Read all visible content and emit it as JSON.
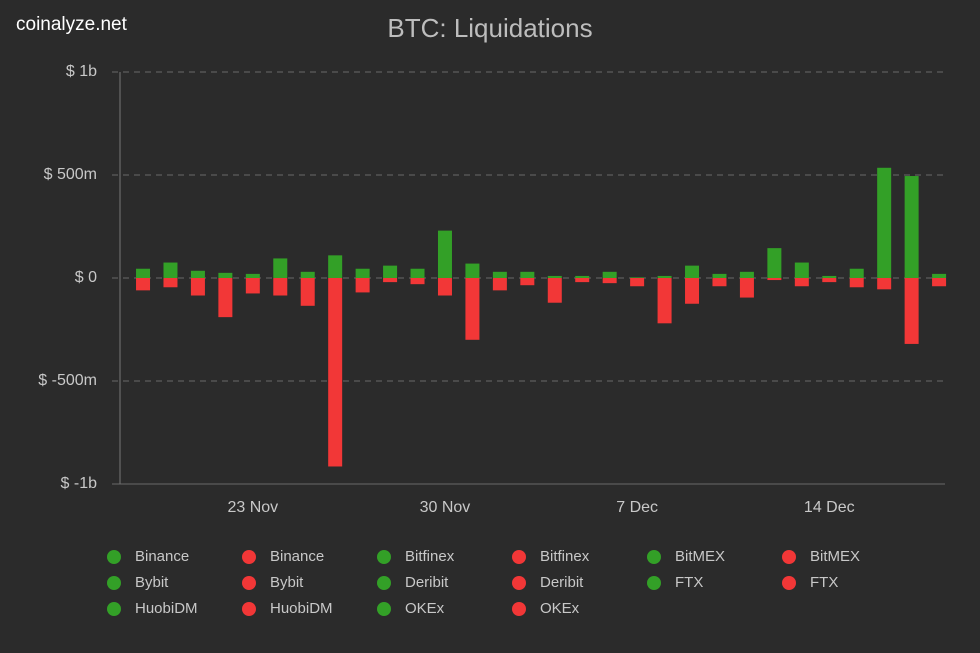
{
  "watermark": "coinalyze.net",
  "chart_data": {
    "type": "bar",
    "title": "BTC: Liquidations",
    "categories": [
      null,
      null,
      null,
      null,
      "23 Nov",
      null,
      null,
      null,
      null,
      null,
      null,
      "30 Nov",
      null,
      null,
      null,
      null,
      null,
      null,
      "7 Dec",
      null,
      null,
      null,
      null,
      null,
      null,
      "14 Dec",
      null,
      null,
      null,
      null
    ],
    "series": [
      {
        "color": "#33a027",
        "values": [
          45,
          75,
          35,
          25,
          20,
          95,
          30,
          110,
          45,
          60,
          45,
          230,
          70,
          30,
          30,
          10,
          10,
          30,
          3,
          10,
          60,
          20,
          30,
          145,
          75,
          10,
          45,
          535,
          495,
          20
        ]
      },
      {
        "color": "#f23737",
        "values": [
          -60,
          -45,
          -85,
          -190,
          -75,
          -85,
          -135,
          -915,
          -70,
          -20,
          -30,
          -85,
          -300,
          -60,
          -35,
          -120,
          -20,
          -25,
          -40,
          -220,
          -125,
          -40,
          -95,
          -10,
          -40,
          -20,
          -45,
          -55,
          -320,
          -40
        ]
      }
    ],
    "ylim": [
      -1000,
      1000
    ],
    "yticks": [
      {
        "value": -1000,
        "label": "$ -1b"
      },
      {
        "value": -500,
        "label": "$ -500m"
      },
      {
        "value": 0,
        "label": "$ 0"
      },
      {
        "value": 500,
        "label": "$ 500m"
      },
      {
        "value": 1000,
        "label": "$ 1b"
      }
    ],
    "grid": true,
    "legend": [
      {
        "name": "Binance",
        "color": "#33a027"
      },
      {
        "name": "Binance",
        "color": "#f23737"
      },
      {
        "name": "Bitfinex",
        "color": "#33a027"
      },
      {
        "name": "Bitfinex",
        "color": "#f23737"
      },
      {
        "name": "BitMEX",
        "color": "#33a027"
      },
      {
        "name": "BitMEX",
        "color": "#f23737"
      },
      {
        "name": "Bybit",
        "color": "#33a027"
      },
      {
        "name": "Bybit",
        "color": "#f23737"
      },
      {
        "name": "Deribit",
        "color": "#33a027"
      },
      {
        "name": "Deribit",
        "color": "#f23737"
      },
      {
        "name": "FTX",
        "color": "#33a027"
      },
      {
        "name": "FTX",
        "color": "#f23737"
      },
      {
        "name": "HuobiDM",
        "color": "#33a027"
      },
      {
        "name": "HuobiDM",
        "color": "#f23737"
      },
      {
        "name": "OKEx",
        "color": "#33a027"
      },
      {
        "name": "OKEx",
        "color": "#f23737"
      }
    ]
  }
}
